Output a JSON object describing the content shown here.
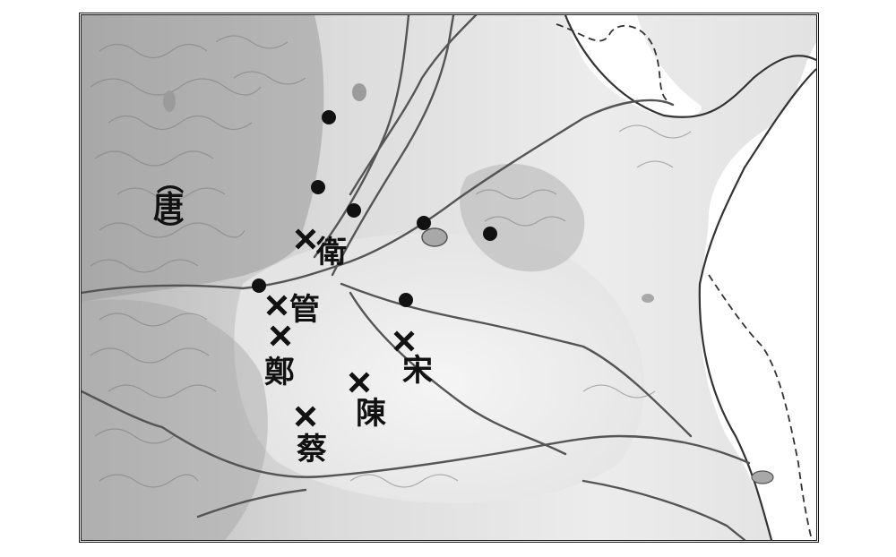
{
  "map": {
    "colors": {
      "terrain_light": "#f2f2f2",
      "terrain_mid": "#bdbdbd",
      "terrain_dark": "#8c8c8c",
      "river": "#555555",
      "sea": "#ffffff",
      "marker": "#111111"
    },
    "legend_markers": {
      "dot": "filled-circle",
      "cross": "x-mark"
    },
    "places": {
      "tang": "唐",
      "wei": "衛",
      "guan": "管",
      "zheng": "鄭",
      "song": "宋",
      "chen": "陳",
      "cai": "蔡"
    }
  }
}
